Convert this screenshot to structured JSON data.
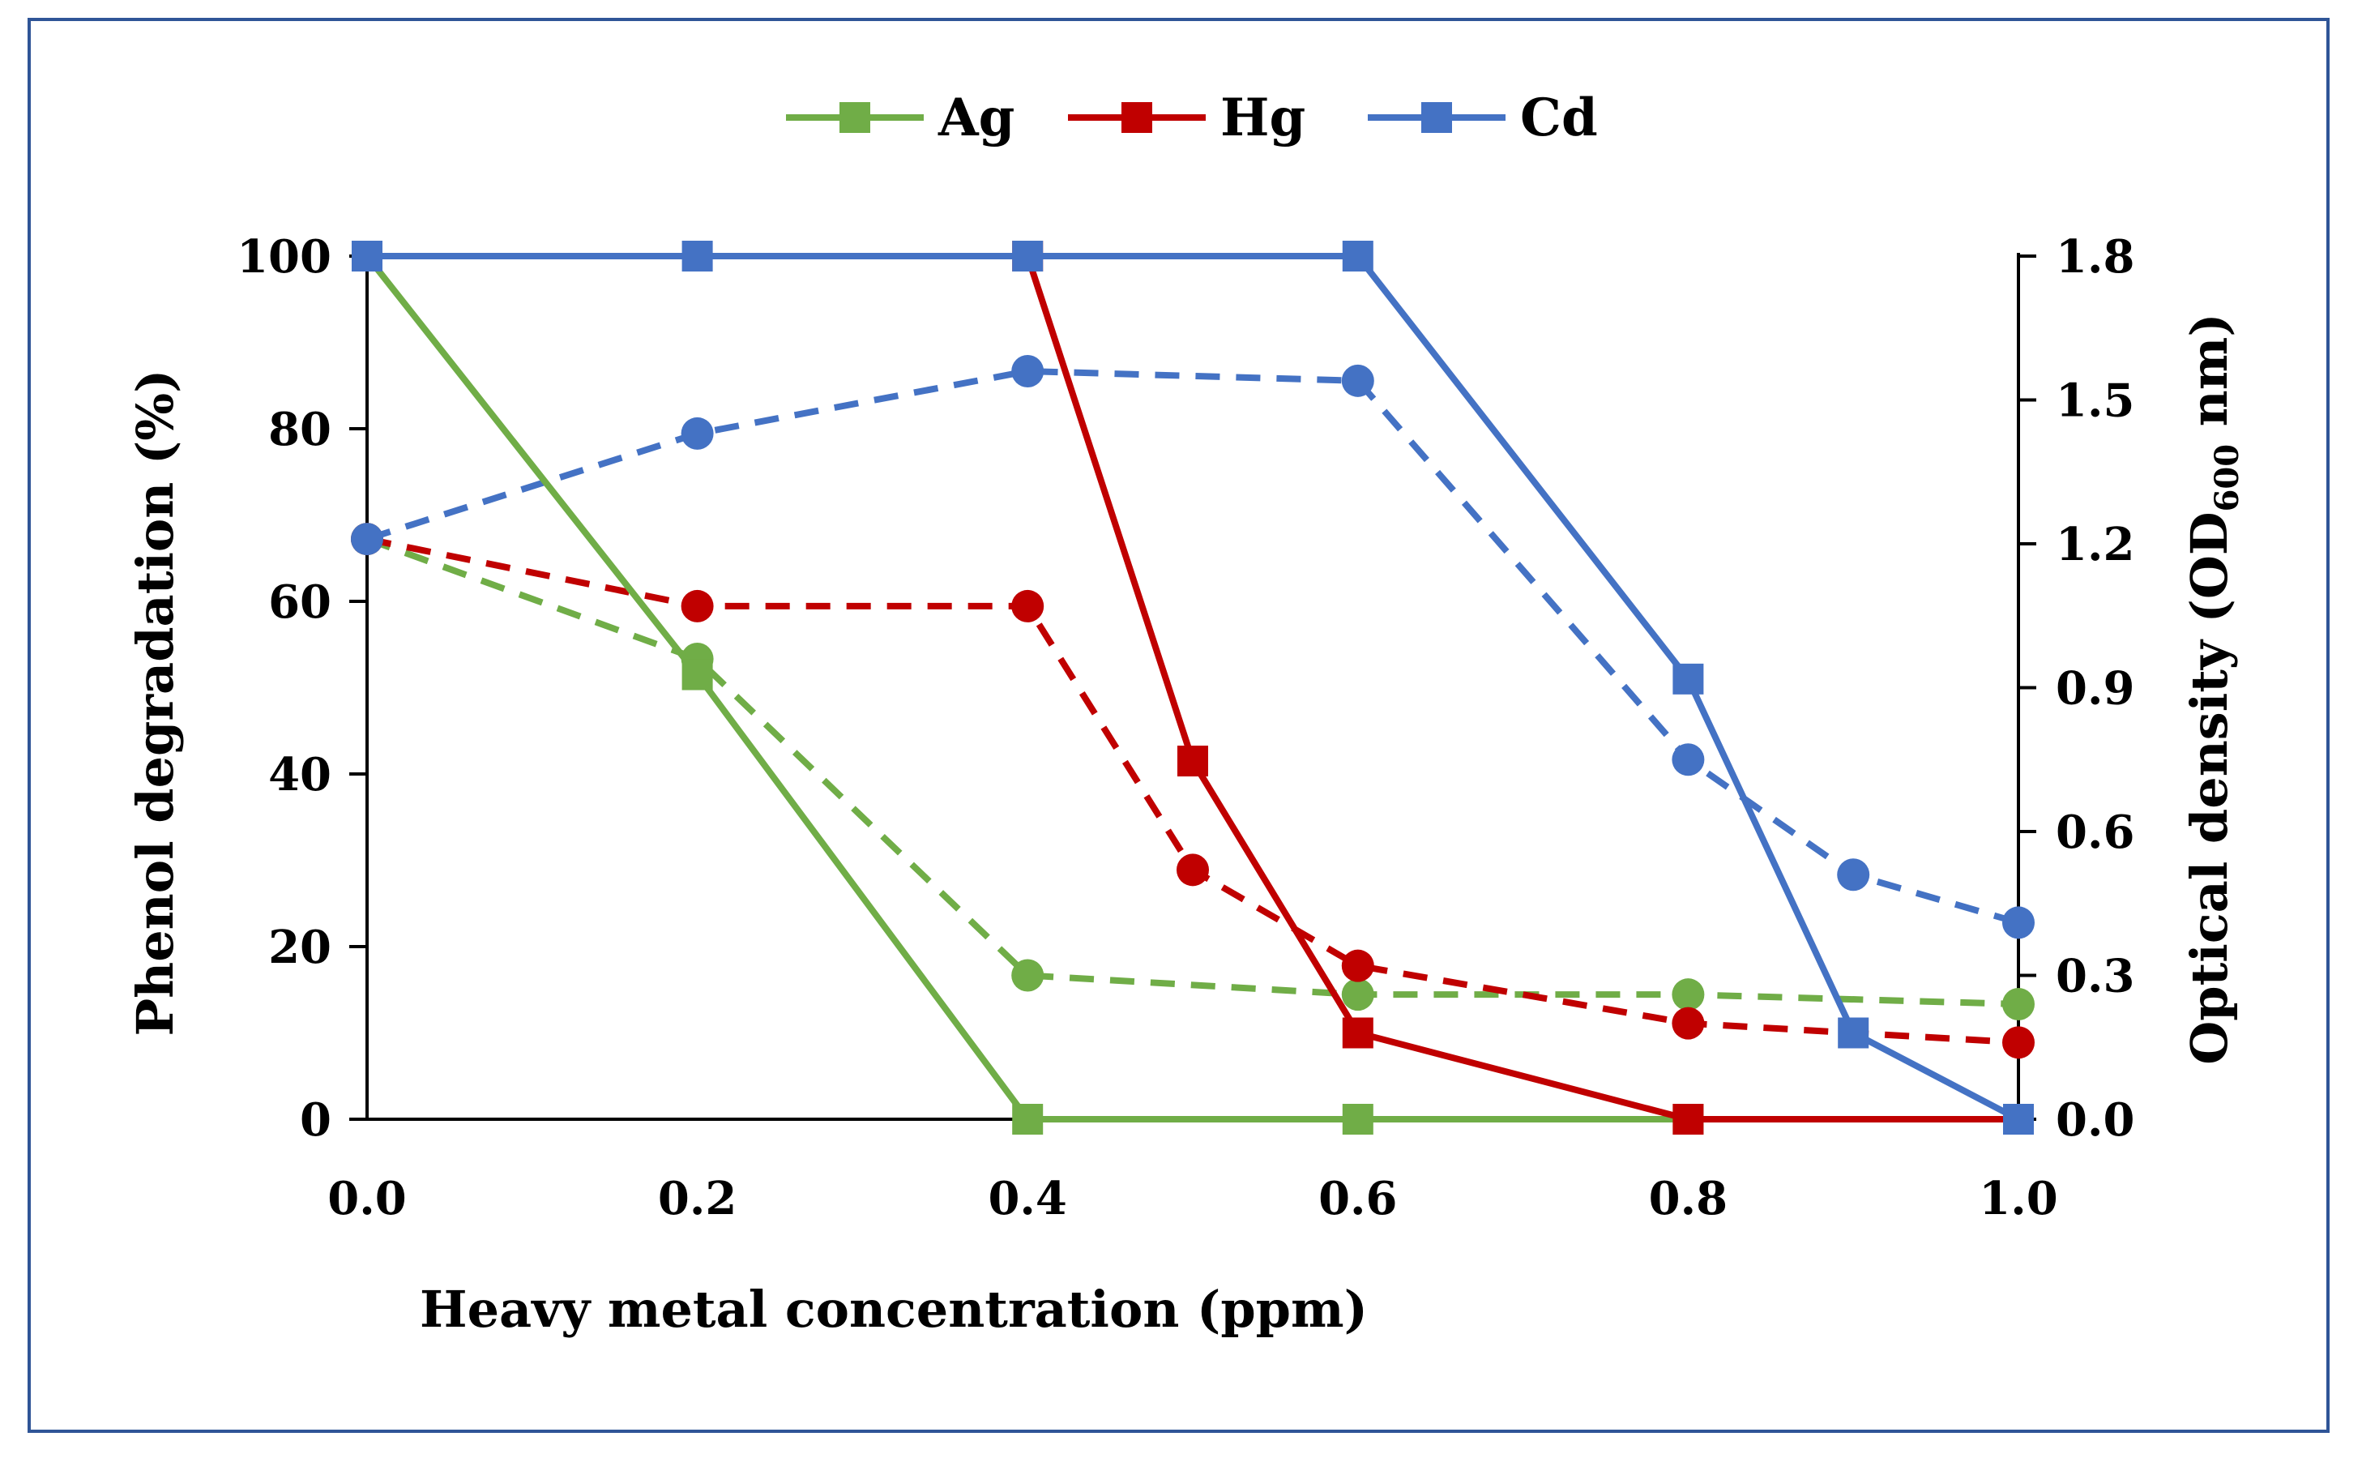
{
  "chart_data": {
    "type": "line",
    "xlabel": "Heavy metal concentration (ppm)",
    "ylabel": "Phenol degradation (%)",
    "y2label": {
      "main": "Optical density (OD",
      "sub": "600",
      "tail": " nm)"
    },
    "xlim": [
      0,
      1.0
    ],
    "ylim": [
      0,
      100
    ],
    "y2lim": [
      0,
      1.8
    ],
    "x_ticks": [
      "0.0",
      "0.2",
      "0.4",
      "0.6",
      "0.8",
      "1.0"
    ],
    "y_ticks": [
      "0",
      "20",
      "40",
      "60",
      "80",
      "100"
    ],
    "y2_ticks": [
      "0.0",
      "0.3",
      "0.6",
      "0.9",
      "1.2",
      "1.5",
      "1.8"
    ],
    "legend": [
      "Ag",
      "Hg",
      "Cd"
    ],
    "legend_position": "top-center",
    "grid": false,
    "series": [
      {
        "name": "Ag",
        "color": "#70ad47",
        "style": "solid",
        "marker": "square",
        "axis": "left",
        "x": [
          0.0,
          0.2,
          0.4,
          0.6,
          0.8,
          1.0
        ],
        "y": [
          100,
          51.5,
          0,
          0,
          0,
          0
        ]
      },
      {
        "name": "Hg",
        "color": "#c00000",
        "style": "solid",
        "marker": "square",
        "axis": "left",
        "x": [
          0.4,
          0.5,
          0.6,
          0.8,
          1.0
        ],
        "y": [
          100,
          41.5,
          10,
          0,
          0
        ]
      },
      {
        "name": "Cd",
        "color": "#4472c4",
        "style": "solid",
        "marker": "square",
        "axis": "left",
        "x": [
          0.0,
          0.2,
          0.4,
          0.6,
          0.8,
          0.9,
          1.0
        ],
        "y": [
          100,
          100,
          100,
          100,
          51,
          10,
          0
        ]
      },
      {
        "name": "",
        "color": "#70ad47",
        "style": "dashed",
        "marker": "circle",
        "axis": "right",
        "x": [
          0.0,
          0.2,
          0.4,
          0.6,
          0.8,
          1.0
        ],
        "y": [
          1.21,
          0.96,
          0.3,
          0.26,
          0.26,
          0.24
        ]
      },
      {
        "name": "",
        "color": "#c00000",
        "style": "dashed",
        "marker": "circle",
        "axis": "right",
        "x": [
          0.0,
          0.2,
          0.4,
          0.5,
          0.6,
          0.8,
          1.0
        ],
        "y": [
          1.21,
          1.07,
          1.07,
          0.52,
          0.32,
          0.2,
          0.16
        ]
      },
      {
        "name": "",
        "color": "#4472c4",
        "style": "dashed",
        "marker": "circle",
        "axis": "right",
        "x": [
          0.0,
          0.2,
          0.4,
          0.6,
          0.8,
          0.9,
          1.0
        ],
        "y": [
          1.21,
          1.43,
          1.56,
          1.54,
          0.75,
          0.51,
          0.41
        ]
      }
    ]
  }
}
